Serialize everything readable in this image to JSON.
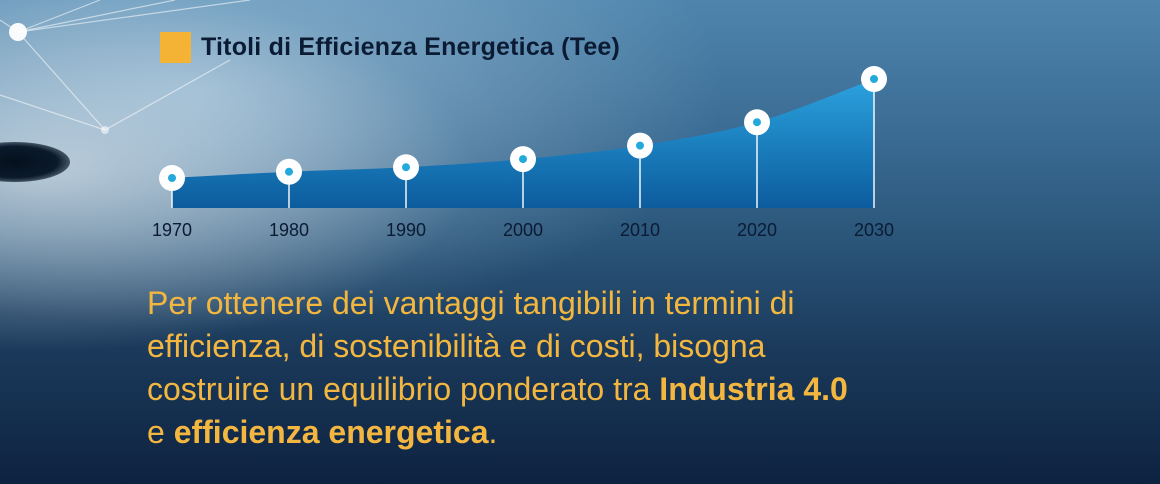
{
  "colors": {
    "accent": "#f5b335",
    "area_top": "#2ba3df",
    "area_bottom": "#0c5c9d",
    "marker_center": "#23a9dc"
  },
  "chart_data": {
    "type": "area",
    "title": "Titoli di Efficienza Energetica (Tee)",
    "x": [
      "1970",
      "1980",
      "1990",
      "2000",
      "2010",
      "2020",
      "2030"
    ],
    "series": [
      {
        "values": [
          1.0,
          1.35,
          1.6,
          2.05,
          2.8,
          4.1,
          6.5
        ]
      }
    ],
    "xlabel": "",
    "ylabel": "",
    "grid": false,
    "legend": "none"
  },
  "message": {
    "line1": "Per ottenere dei vantaggi tangibili in termini di",
    "line2": "efficienza, di sostenibilità e di costi, bisogna",
    "line3_prefix": "costruire un equilibrio ponderato tra ",
    "line3_bold": "Industria 4.0",
    "line4_prefix": "e ",
    "line4_bold": "efficienza energetica",
    "line4_suffix": "."
  }
}
